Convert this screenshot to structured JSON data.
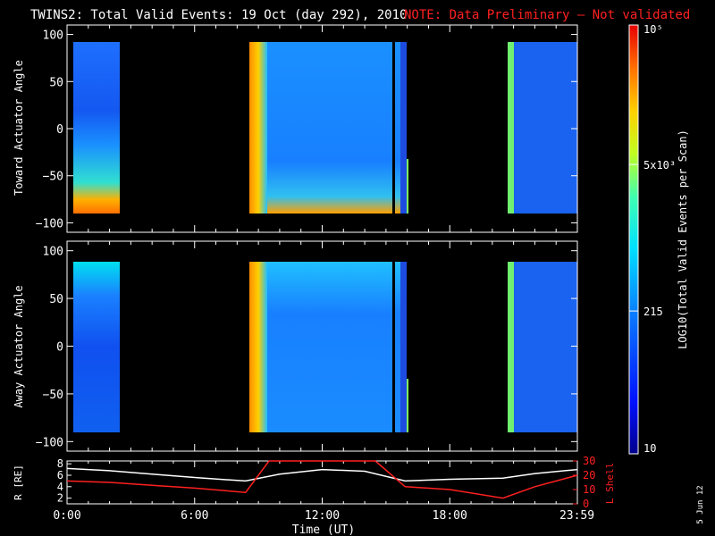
{
  "title": "TWINS2: Total Valid Events: 19 Oct (day 292), 2010",
  "note": "NOTE: Data Preliminary — Not validated",
  "side_stamp": "5 Jun 12",
  "colors": {
    "note": "#ff2020",
    "axes": "#ffffff",
    "lshell": "#ff2020",
    "r": "#ffffff"
  },
  "chart_data": [
    {
      "type": "heatmap",
      "ylabel": "Toward Actuator Angle",
      "yticks": [
        "100",
        "50",
        "0",
        "−50",
        "−100"
      ],
      "ylim": [
        -110,
        110
      ],
      "xlim": [
        0,
        24
      ],
      "data_blocks_hours": [
        [
          0.0,
          2.2
        ],
        [
          8.4,
          15.9
        ],
        [
          20.8,
          24.0
        ]
      ]
    },
    {
      "type": "heatmap",
      "ylabel": "Away Actuator Angle",
      "yticks": [
        "100",
        "50",
        "0",
        "−50",
        "−100"
      ],
      "ylim": [
        -110,
        110
      ],
      "xlim": [
        0,
        24
      ],
      "data_blocks_hours": [
        [
          0.0,
          2.2
        ],
        [
          8.4,
          15.9
        ],
        [
          20.8,
          24.0
        ]
      ]
    },
    {
      "type": "line",
      "xlabel": "Time (UT)",
      "xticks": [
        "0:00",
        "6:00",
        "12:00",
        "18:00",
        "23:59"
      ],
      "left_axis": {
        "label": "R [RE]",
        "ticks": [
          "8",
          "6",
          "4",
          "2"
        ],
        "ylim": [
          1,
          8.5
        ]
      },
      "right_axis": {
        "label": "L Shell",
        "ticks": [
          "30",
          "20",
          "10",
          "0"
        ],
        "ylim": [
          0,
          30
        ]
      },
      "series": [
        {
          "name": "R",
          "x": [
            0,
            2,
            4,
            6,
            8.4,
            10,
            12,
            14,
            15.9,
            18,
            20.5,
            22,
            24
          ],
          "values": [
            7.2,
            6.8,
            6.2,
            5.6,
            5.0,
            6.2,
            7.0,
            6.7,
            5.0,
            5.3,
            5.5,
            6.3,
            7.0
          ]
        },
        {
          "name": "L Shell",
          "x": [
            0,
            2,
            4,
            6,
            8.4,
            9.5,
            14.5,
            15.9,
            18,
            20.5,
            22,
            24
          ],
          "values": [
            16,
            15,
            13,
            11,
            8,
            30,
            30,
            12,
            10,
            4,
            12,
            20
          ]
        }
      ]
    }
  ],
  "colorbar": {
    "label": "LOG10(Total Valid Events per Scan)",
    "ticks": [
      "10⁵",
      "5x10³",
      "215",
      "10"
    ],
    "tick_values": [
      100000,
      5000,
      215,
      10
    ],
    "range": [
      10,
      100000
    ]
  }
}
